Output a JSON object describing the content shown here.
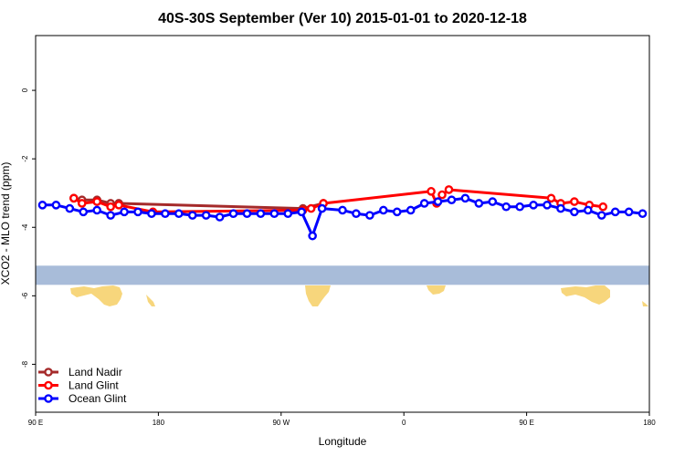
{
  "chart_data": {
    "type": "line",
    "title": "40S-30S September (Ver 10)   2015-01-01 to 2020-12-18",
    "xlabel": "Longitude",
    "ylabel": "XCO2 - MLO trend (ppm)",
    "xlim": [
      90,
      540
    ],
    "ylim": [
      -9.4,
      1.6
    ],
    "x_ticks": [
      {
        "value": 90,
        "label": "90 E"
      },
      {
        "value": 180,
        "label": "180"
      },
      {
        "value": 270,
        "label": "90 W"
      },
      {
        "value": 360,
        "label": "0"
      },
      {
        "value": 450,
        "label": "90 E"
      },
      {
        "value": 540,
        "label": "180"
      }
    ],
    "y_ticks": [
      {
        "value": 0,
        "label": "0"
      },
      {
        "value": -2,
        "label": "-2"
      },
      {
        "value": -4,
        "label": "-4"
      },
      {
        "value": -6,
        "label": "-6"
      },
      {
        "value": -8,
        "label": "-8"
      }
    ],
    "grid": false,
    "legend": "bottom-left",
    "map_strip": {
      "y_top": -5.12,
      "y_bottom": -5.68,
      "ocean_color": "#a8bcd9",
      "land_color": "#f7d67c"
    },
    "series": [
      {
        "name": "Land Nadir",
        "color": "#a52a2a",
        "x": [
          118,
          124,
          135,
          145,
          151,
          286,
          301
        ],
        "y": [
          -3.15,
          -3.2,
          -3.2,
          -3.3,
          -3.3,
          -3.45,
          -3.3
        ]
      },
      {
        "name": "Land Glint",
        "color": "#ff0000",
        "x": [
          118,
          124,
          135,
          145,
          151,
          176,
          286,
          292,
          301,
          380,
          384,
          388,
          393,
          468,
          475,
          485,
          496,
          506
        ],
        "y": [
          -3.15,
          -3.3,
          -3.25,
          -3.4,
          -3.35,
          -3.55,
          -3.5,
          -3.45,
          -3.3,
          -2.95,
          -3.3,
          -3.05,
          -2.9,
          -3.15,
          -3.3,
          -3.25,
          -3.35,
          -3.4
        ]
      },
      {
        "name": "Ocean Glint",
        "color": "#0000ff",
        "x": [
          95,
          105,
          115,
          125,
          135,
          145,
          155,
          165,
          175,
          185,
          195,
          205,
          215,
          225,
          235,
          245,
          255,
          265,
          275,
          285,
          293,
          300,
          315,
          325,
          335,
          345,
          355,
          365,
          375,
          385,
          395,
          405,
          415,
          425,
          435,
          445,
          455,
          465,
          475,
          485,
          495,
          505,
          515,
          525,
          535
        ],
        "y": [
          -3.35,
          -3.35,
          -3.45,
          -3.55,
          -3.5,
          -3.65,
          -3.55,
          -3.55,
          -3.6,
          -3.6,
          -3.6,
          -3.65,
          -3.65,
          -3.7,
          -3.6,
          -3.6,
          -3.6,
          -3.6,
          -3.6,
          -3.55,
          -4.25,
          -3.45,
          -3.5,
          -3.6,
          -3.65,
          -3.5,
          -3.55,
          -3.5,
          -3.3,
          -3.25,
          -3.2,
          -3.15,
          -3.3,
          -3.25,
          -3.4,
          -3.4,
          -3.35,
          -3.35,
          -3.45,
          -3.55,
          -3.5,
          -3.65,
          -3.55,
          -3.55,
          -3.6
        ]
      }
    ]
  }
}
